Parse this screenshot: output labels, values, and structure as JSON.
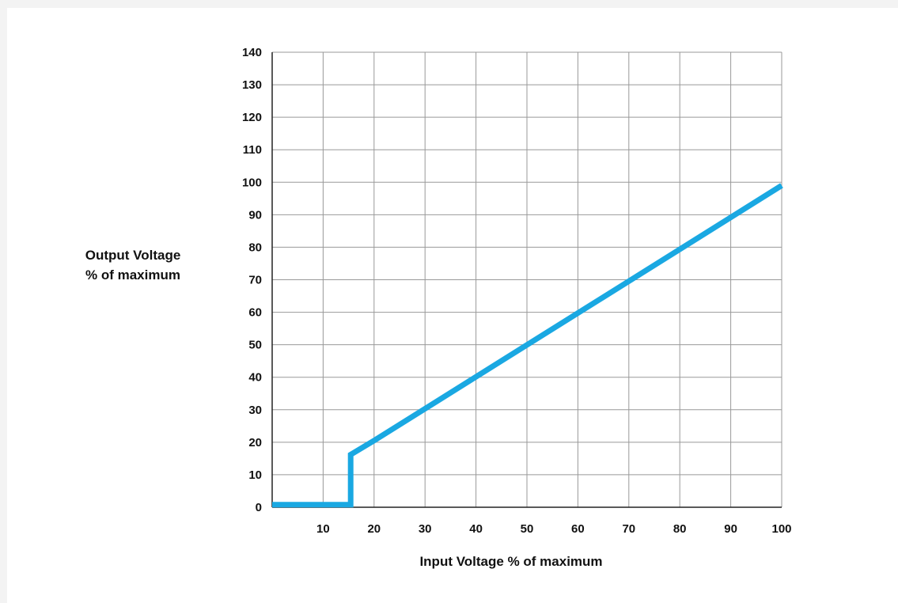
{
  "chart_data": {
    "type": "line",
    "title": "",
    "xlabel": "Input Voltage % of maximum",
    "ylabel": [
      "Output Voltage",
      "% of maximum"
    ],
    "xlim": [
      0,
      100
    ],
    "ylim": [
      0,
      140
    ],
    "x_ticks": [
      10,
      20,
      30,
      40,
      50,
      60,
      70,
      80,
      90,
      100
    ],
    "y_ticks": [
      0,
      10,
      20,
      30,
      40,
      50,
      60,
      70,
      80,
      90,
      100,
      110,
      120,
      130,
      140
    ],
    "grid": true,
    "series": [
      {
        "color": "#1aa8e2",
        "points": [
          [
            0,
            0.8
          ],
          [
            15.4,
            0.8
          ],
          [
            15.4,
            16.2
          ],
          [
            20,
            20.5
          ],
          [
            100,
            99
          ]
        ]
      }
    ]
  }
}
